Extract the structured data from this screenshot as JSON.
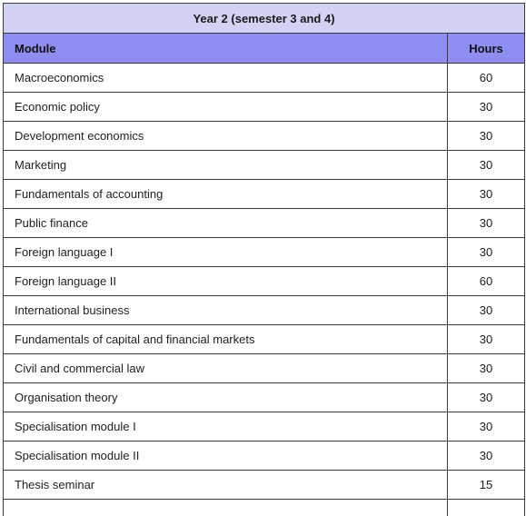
{
  "table": {
    "title": "Year 2 (semester 3 and 4)",
    "columns": {
      "module": "Module",
      "hours": "Hours"
    },
    "rows": [
      {
        "module": "Macroeconomics",
        "hours": "60"
      },
      {
        "module": "Economic policy",
        "hours": "30"
      },
      {
        "module": "Development economics",
        "hours": "30"
      },
      {
        "module": "Marketing",
        "hours": "30"
      },
      {
        "module": "Fundamentals of accounting",
        "hours": "30"
      },
      {
        "module": "Public finance",
        "hours": "30"
      },
      {
        "module": "Foreign language I",
        "hours": "30"
      },
      {
        "module": "Foreign language II",
        "hours": "60"
      },
      {
        "module": "International business",
        "hours": "30"
      },
      {
        "module": "Fundamentals of capital and financial markets",
        "hours": "30"
      },
      {
        "module": "Civil and commercial law",
        "hours": "30"
      },
      {
        "module": "Organisation theory",
        "hours": "30"
      },
      {
        "module": "Specialisation module I",
        "hours": "30"
      },
      {
        "module": "Specialisation module II",
        "hours": "30"
      },
      {
        "module": "Thesis seminar",
        "hours": "15"
      }
    ],
    "colors": {
      "title_bg": "#d2d2f4",
      "header_bg": "#8e8ef2",
      "border": "#3a3a3a"
    }
  }
}
